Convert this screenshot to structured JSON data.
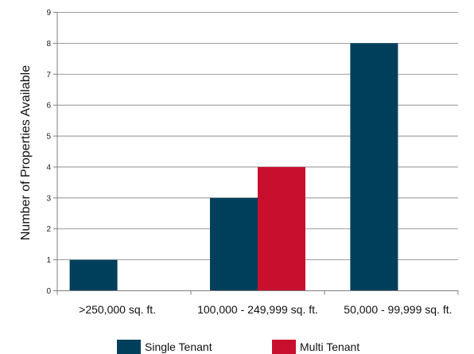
{
  "chart_data": {
    "type": "bar",
    "title": "",
    "xlabel": "",
    "ylabel": "Number of Properties Available",
    "ylim": [
      0,
      9
    ],
    "yticks": [
      "0",
      "1",
      "2",
      "3",
      "4",
      "5",
      "6",
      "7",
      "8",
      "9"
    ],
    "grid": true,
    "legend_position": "bottom",
    "categories": [
      ">250,000 sq. ft.",
      "100,000 - 249,999 sq. ft.",
      "50,000 - 99,999 sq. ft."
    ],
    "series": [
      {
        "name": "Single Tenant",
        "color": "#003f5c",
        "values": [
          1,
          3,
          8
        ]
      },
      {
        "name": "Multi Tenant",
        "color": "#c8102e",
        "values": [
          0,
          4,
          0
        ]
      }
    ]
  }
}
